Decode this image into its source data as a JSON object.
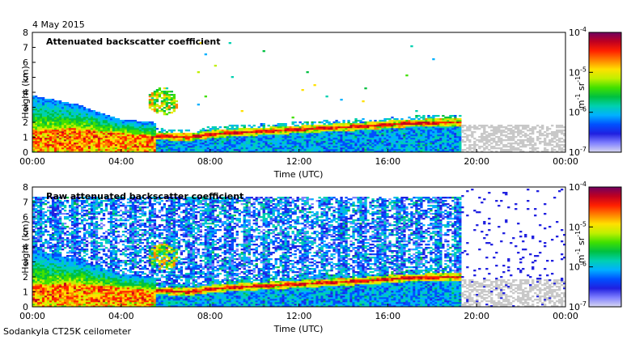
{
  "date_label": "4 May 2015",
  "instrument_label": "Sodankyla CT25K ceilometer",
  "colors": {
    "colormap": [
      "#d8d8f0",
      "#8080ff",
      "#2020e0",
      "#0050ff",
      "#00b0ff",
      "#00d0b0",
      "#00c040",
      "#40e000",
      "#c0f000",
      "#ffe000",
      "#ff8000",
      "#ff2000",
      "#c00020",
      "#700060"
    ],
    "noise_gray": "#c8c8c8"
  },
  "chart_data": [
    {
      "type": "heatmap",
      "title": "Attenuated backscatter coefficient",
      "xlabel": "Time (UTC)",
      "ylabel": "Height (km)",
      "x_ticks": [
        "00:00",
        "04:00",
        "08:00",
        "12:00",
        "16:00",
        "20:00",
        "00:00"
      ],
      "y_ticks": [
        "0",
        "1",
        "2",
        "3",
        "4",
        "5",
        "6",
        "7",
        "8"
      ],
      "xlim_hours": [
        0,
        24
      ],
      "ylim_km": [
        0,
        8
      ],
      "colorbar": {
        "unit_label": "m",
        "unit_exp": "-1",
        "unit_label2": "sr",
        "unit_exp2": "-1",
        "scale": "log",
        "range": [
          1e-07,
          0.0001
        ],
        "ticks": [
          {
            "base": "10",
            "exp": "-4",
            "value": 0.0001
          },
          {
            "base": "10",
            "exp": "-5",
            "value": 1e-05
          },
          {
            "base": "10",
            "exp": "-6",
            "value": 1e-06
          },
          {
            "base": "10",
            "exp": "-7",
            "value": 1e-07
          }
        ]
      },
      "layer_height_km": [
        [
          0,
          1.5
        ],
        [
          2,
          1.6
        ],
        [
          4,
          1.3
        ],
        [
          5.5,
          1.1
        ],
        [
          7,
          1.0
        ],
        [
          8,
          1.2
        ],
        [
          9,
          1.3
        ],
        [
          11,
          1.45
        ],
        [
          13,
          1.6
        ],
        [
          15,
          1.75
        ],
        [
          17,
          1.95
        ],
        [
          19,
          2.0
        ]
      ],
      "raw": false
    },
    {
      "type": "heatmap",
      "title": "Raw attenuated backscatter coefficient",
      "xlabel": "Time (UTC)",
      "ylabel": "Height (km)",
      "x_ticks": [
        "00:00",
        "04:00",
        "08:00",
        "12:00",
        "16:00",
        "20:00",
        "00:00"
      ],
      "y_ticks": [
        "0",
        "1",
        "2",
        "3",
        "4",
        "5",
        "6",
        "7",
        "8"
      ],
      "xlim_hours": [
        0,
        24
      ],
      "ylim_km": [
        0,
        8
      ],
      "colorbar": {
        "unit_label": "m",
        "unit_exp": "-1",
        "unit_label2": "sr",
        "unit_exp2": "-1",
        "scale": "log",
        "range": [
          1e-07,
          0.0001
        ],
        "ticks": [
          {
            "base": "10",
            "exp": "-4",
            "value": 0.0001
          },
          {
            "base": "10",
            "exp": "-5",
            "value": 1e-05
          },
          {
            "base": "10",
            "exp": "-6",
            "value": 1e-06
          },
          {
            "base": "10",
            "exp": "-7",
            "value": 1e-07
          }
        ]
      },
      "layer_height_km": [
        [
          0,
          1.5
        ],
        [
          2,
          1.6
        ],
        [
          4,
          1.3
        ],
        [
          5.5,
          1.1
        ],
        [
          7,
          1.0
        ],
        [
          8,
          1.2
        ],
        [
          9,
          1.3
        ],
        [
          11,
          1.45
        ],
        [
          13,
          1.6
        ],
        [
          15,
          1.75
        ],
        [
          17,
          1.95
        ],
        [
          19,
          2.0
        ]
      ],
      "raw": true
    }
  ]
}
